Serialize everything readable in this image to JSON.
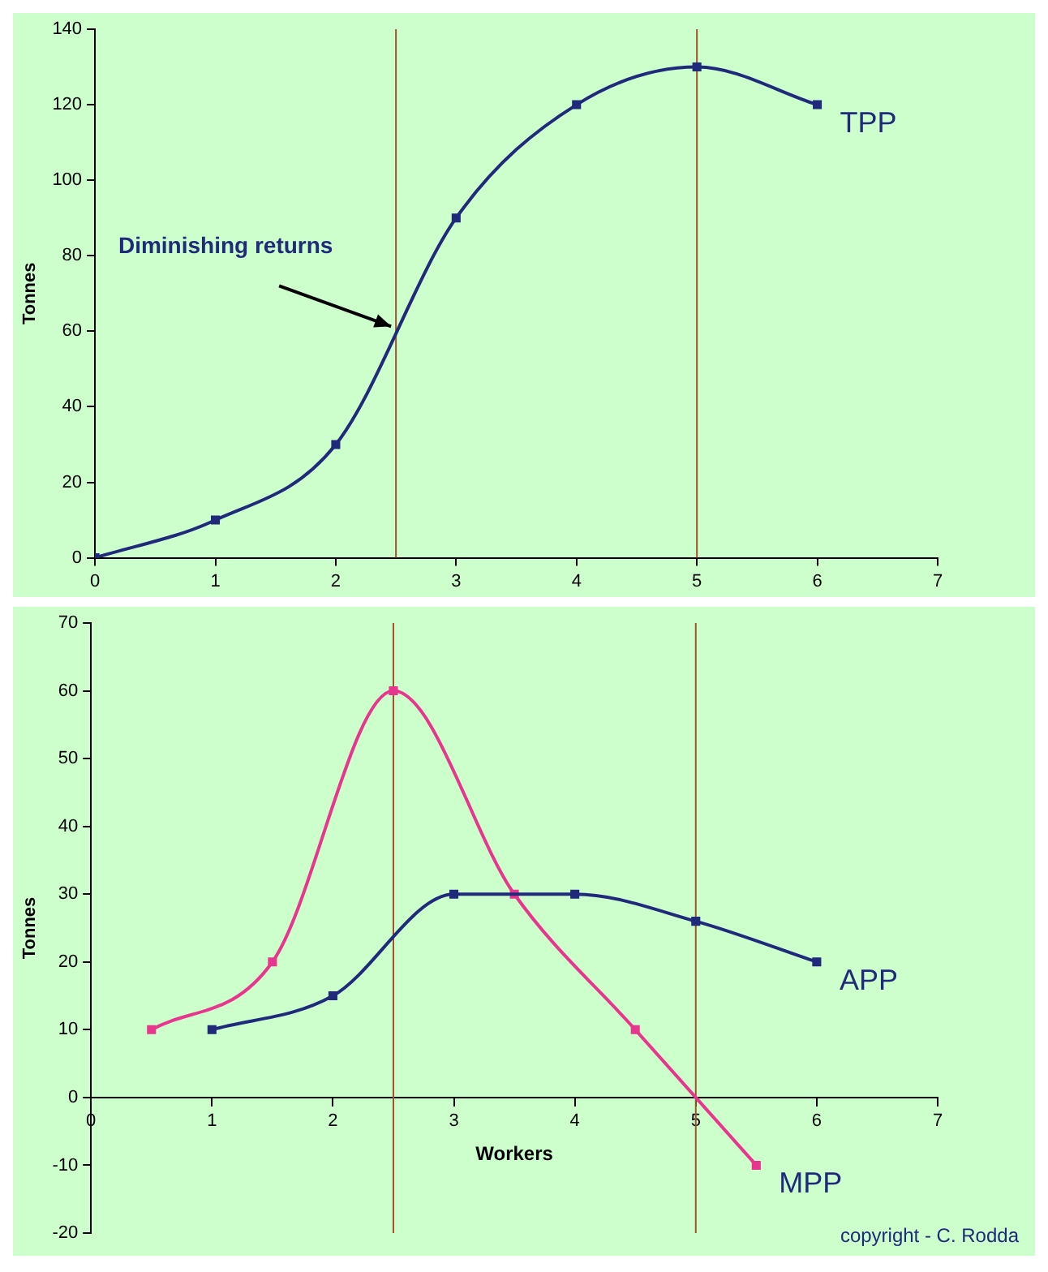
{
  "chart_data": [
    {
      "type": "line",
      "ylabel": "Tonnes",
      "xlim": [
        0,
        7
      ],
      "xticks": [
        0,
        1,
        2,
        3,
        4,
        5,
        6,
        7
      ],
      "ylim": [
        0,
        140
      ],
      "yticks": [
        0,
        20,
        40,
        60,
        80,
        100,
        120,
        140
      ],
      "marker": "square",
      "line_style": "solid",
      "grid": false,
      "series": [
        {
          "name": "TPP",
          "color": "#1f2a7a",
          "x": [
            0,
            1,
            2,
            3,
            4,
            5,
            6
          ],
          "values": [
            0,
            10,
            30,
            90,
            120,
            130,
            120
          ]
        }
      ],
      "ref_lines": [
        {
          "axis": "x",
          "value": 2.5,
          "color": "#a0522d"
        },
        {
          "axis": "x",
          "value": 5,
          "color": "#a0522d"
        }
      ],
      "annotations": [
        {
          "text": "Diminishing returns",
          "x": 2.5,
          "y": 60
        }
      ]
    },
    {
      "type": "line",
      "xlabel": "Workers",
      "ylabel": "Tonnes",
      "xlim": [
        0,
        7
      ],
      "xticks": [
        0,
        1,
        2,
        3,
        4,
        5,
        6,
        7
      ],
      "ylim": [
        -20,
        70
      ],
      "yticks": [
        -20,
        -10,
        0,
        10,
        20,
        30,
        40,
        50,
        60,
        70
      ],
      "marker": "square",
      "line_style": "solid",
      "grid": false,
      "series": [
        {
          "name": "APP",
          "color": "#1f2a7a",
          "x": [
            1,
            2,
            3,
            4,
            5,
            6
          ],
          "values": [
            10,
            15,
            30,
            30,
            26,
            20
          ]
        },
        {
          "name": "MPP",
          "color": "#e8368f",
          "x": [
            0.5,
            1.5,
            2.5,
            3.5,
            4.5,
            5.5
          ],
          "values": [
            10,
            20,
            60,
            30,
            10,
            -10
          ]
        }
      ],
      "ref_lines": [
        {
          "axis": "x",
          "value": 2.5,
          "color": "#a0522d"
        },
        {
          "axis": "x",
          "value": 5,
          "color": "#a0522d"
        }
      ],
      "annotations": [
        "copyright - C. Rodda"
      ]
    }
  ]
}
